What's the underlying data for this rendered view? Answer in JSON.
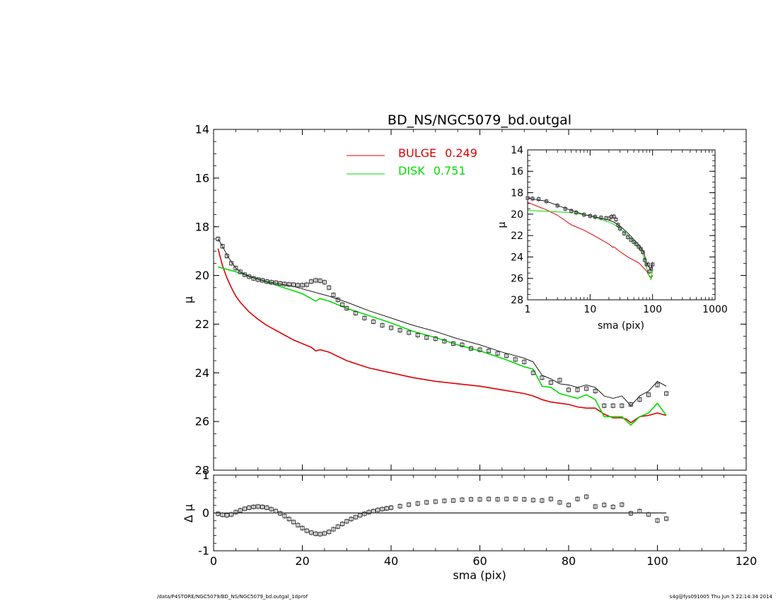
{
  "chart_data": [
    {
      "type": "line",
      "panel": "main",
      "title": "BD_NS/NGC5079_bd.outgal",
      "xlabel": "",
      "ylabel": "μ",
      "xlim": [
        0,
        120
      ],
      "ylim": [
        28,
        14
      ],
      "y_inverted": true,
      "xticks": [
        0,
        20,
        40,
        60,
        80,
        100,
        120
      ],
      "yticks": [
        14,
        16,
        18,
        20,
        22,
        24,
        26,
        28
      ],
      "legend": {
        "placement": "top-center",
        "entries": [
          {
            "label": "BULGE",
            "value": "0.249",
            "color": "#e00000"
          },
          {
            "label": "DISK",
            "value": "0.751",
            "color": "#00dd00"
          }
        ]
      },
      "series": [
        {
          "name": "BULGE",
          "color": "#e00000",
          "x": [
            1,
            2,
            3,
            4,
            5,
            6,
            8,
            10,
            12,
            15,
            18,
            20,
            22,
            23,
            24,
            26,
            30,
            35,
            40,
            45,
            50,
            55,
            60,
            65,
            70,
            72,
            74,
            76,
            78,
            80,
            82,
            84,
            86,
            88,
            90,
            92,
            93,
            94,
            96,
            98,
            100,
            102
          ],
          "y": [
            18.9,
            19.6,
            20.1,
            20.5,
            20.85,
            21.1,
            21.5,
            21.8,
            22.05,
            22.35,
            22.65,
            22.8,
            22.95,
            23.1,
            23.05,
            23.15,
            23.5,
            23.8,
            24.0,
            24.2,
            24.35,
            24.45,
            24.55,
            24.7,
            24.85,
            24.95,
            25.1,
            25.2,
            25.25,
            25.3,
            25.4,
            25.45,
            25.45,
            25.7,
            25.85,
            25.85,
            25.9,
            26.05,
            25.8,
            25.75,
            25.65,
            25.75
          ]
        },
        {
          "name": "DISK",
          "color": "#00dd00",
          "x": [
            1,
            5,
            10,
            15,
            20,
            22,
            23,
            24,
            26,
            30,
            35,
            40,
            45,
            50,
            55,
            60,
            65,
            70,
            72,
            74,
            76,
            78,
            80,
            82,
            84,
            86,
            88,
            90,
            92,
            94,
            96,
            98,
            100,
            102
          ],
          "y": [
            19.65,
            19.85,
            20.15,
            20.45,
            20.75,
            20.95,
            21.05,
            20.95,
            21.05,
            21.35,
            21.65,
            21.95,
            22.3,
            22.55,
            22.85,
            23.1,
            23.4,
            23.75,
            23.85,
            24.55,
            24.6,
            24.85,
            24.95,
            25.05,
            24.9,
            25.1,
            25.8,
            25.8,
            25.8,
            26.15,
            25.8,
            25.65,
            25.25,
            25.75
          ]
        },
        {
          "name": "",
          "color": "#000000",
          "x": [
            1,
            2,
            3,
            4,
            5,
            6,
            8,
            10,
            12,
            15,
            18,
            20,
            22,
            24,
            26,
            30,
            35,
            40,
            45,
            50,
            55,
            60,
            65,
            70,
            72,
            74,
            76,
            78,
            80,
            82,
            84,
            86,
            88,
            90,
            92,
            94,
            96,
            98,
            100,
            102
          ],
          "y": [
            18.5,
            18.8,
            19.15,
            19.45,
            19.7,
            19.85,
            20.05,
            20.15,
            20.25,
            20.35,
            20.45,
            20.55,
            20.65,
            20.75,
            20.85,
            21.1,
            21.45,
            21.75,
            22.05,
            22.3,
            22.6,
            22.85,
            23.15,
            23.4,
            23.55,
            24.1,
            24.25,
            24.45,
            24.5,
            24.6,
            24.5,
            24.6,
            24.95,
            25.05,
            24.95,
            25.35,
            24.95,
            24.75,
            24.35,
            24.55
          ]
        },
        {
          "name": "",
          "type": "scatter",
          "marker": "open-square",
          "color": "#000000",
          "x": [
            1,
            2,
            3,
            4,
            5,
            6,
            7,
            8,
            9,
            10,
            11,
            12,
            13,
            14,
            15,
            16,
            17,
            18,
            19,
            20,
            21,
            22,
            23,
            24,
            25,
            26,
            27,
            28,
            29,
            30,
            32,
            34,
            36,
            38,
            40,
            42,
            44,
            46,
            48,
            50,
            52,
            54,
            56,
            58,
            60,
            62,
            64,
            66,
            68,
            70,
            72,
            74,
            76,
            78,
            80,
            82,
            84,
            86,
            88,
            90,
            92,
            94,
            96,
            98,
            100,
            102
          ],
          "y": [
            18.5,
            18.8,
            19.2,
            19.5,
            19.7,
            19.85,
            19.97,
            20.05,
            20.12,
            20.17,
            20.2,
            20.25,
            20.28,
            20.3,
            20.33,
            20.35,
            20.37,
            20.38,
            20.4,
            20.4,
            20.38,
            20.25,
            20.2,
            20.22,
            20.28,
            20.5,
            20.8,
            21.0,
            21.2,
            21.35,
            21.55,
            21.75,
            21.9,
            22.05,
            22.15,
            22.25,
            22.35,
            22.45,
            22.55,
            22.6,
            22.7,
            22.8,
            22.85,
            23.0,
            23.05,
            23.1,
            23.2,
            23.3,
            23.45,
            23.55,
            24.0,
            24.2,
            24.4,
            24.3,
            24.7,
            24.7,
            24.65,
            24.75,
            25.35,
            25.35,
            25.35,
            25.3,
            25.1,
            24.9,
            24.5,
            24.85
          ]
        }
      ]
    },
    {
      "type": "scatter",
      "panel": "residual",
      "title": "",
      "xlabel": "sma (pix)",
      "ylabel": "Δ μ",
      "xlim": [
        0,
        120
      ],
      "ylim": [
        -1,
        1
      ],
      "xticks": [
        0,
        20,
        40,
        60,
        80,
        100,
        120
      ],
      "yticks": [
        -1,
        0,
        1
      ],
      "reference_line": 0,
      "series": [
        {
          "name": "",
          "marker": "open-square",
          "color": "#000000",
          "x": [
            1,
            2,
            3,
            4,
            5,
            6,
            7,
            8,
            9,
            10,
            11,
            12,
            13,
            14,
            15,
            16,
            17,
            18,
            19,
            20,
            21,
            22,
            23,
            24,
            25,
            26,
            27,
            28,
            29,
            30,
            31,
            32,
            33,
            34,
            35,
            36,
            37,
            38,
            39,
            40,
            42,
            44,
            46,
            48,
            50,
            52,
            54,
            56,
            58,
            60,
            62,
            64,
            66,
            68,
            70,
            72,
            74,
            76,
            78,
            80,
            82,
            84,
            86,
            88,
            90,
            92,
            94,
            96,
            98,
            100,
            102
          ],
          "y": [
            -0.02,
            -0.05,
            -0.06,
            -0.04,
            0.02,
            0.07,
            0.11,
            0.14,
            0.16,
            0.17,
            0.16,
            0.14,
            0.1,
            0.05,
            -0.01,
            -0.08,
            -0.16,
            -0.24,
            -0.32,
            -0.4,
            -0.47,
            -0.52,
            -0.55,
            -0.56,
            -0.54,
            -0.5,
            -0.43,
            -0.36,
            -0.29,
            -0.22,
            -0.16,
            -0.11,
            -0.06,
            -0.02,
            0.02,
            0.05,
            0.08,
            0.1,
            0.12,
            0.14,
            0.18,
            0.22,
            0.25,
            0.28,
            0.3,
            0.32,
            0.33,
            0.35,
            0.36,
            0.36,
            0.37,
            0.36,
            0.37,
            0.37,
            0.36,
            0.34,
            0.33,
            0.37,
            0.28,
            0.21,
            0.37,
            0.43,
            0.17,
            0.21,
            0.16,
            0.22,
            -0.01,
            0.05,
            -0.04,
            -0.2,
            -0.15
          ]
        }
      ]
    },
    {
      "type": "line",
      "panel": "inset",
      "title": "",
      "xlabel": "sma (pix)",
      "ylabel": "μ",
      "xscale": "log",
      "xlim": [
        1,
        1000
      ],
      "ylim": [
        28,
        14
      ],
      "y_inverted": true,
      "xticks": [
        1,
        10,
        100,
        1000
      ],
      "xticklabels": [
        "1",
        "10",
        "100",
        "1000"
      ],
      "yticks": [
        14,
        16,
        18,
        20,
        22,
        24,
        26,
        28
      ],
      "series": [
        {
          "name": "BULGE",
          "color": "#e00000",
          "x": [
            1,
            2,
            3,
            5,
            8,
            12,
            20,
            23,
            24,
            30,
            40,
            60,
            80,
            90,
            95,
            100
          ],
          "y": [
            18.9,
            19.6,
            20.1,
            21.0,
            21.5,
            22.05,
            22.8,
            23.1,
            23.05,
            23.5,
            24.0,
            24.55,
            25.3,
            25.85,
            26.0,
            25.7
          ]
        },
        {
          "name": "DISK",
          "color": "#00dd00",
          "x": [
            1,
            5,
            10,
            20,
            24,
            30,
            40,
            60,
            70,
            80,
            88,
            92,
            94,
            96,
            100
          ],
          "y": [
            19.65,
            19.85,
            20.15,
            20.75,
            20.95,
            21.35,
            21.95,
            23.1,
            23.75,
            24.95,
            25.8,
            25.8,
            26.15,
            25.8,
            25.25
          ]
        },
        {
          "name": "",
          "color": "#000000",
          "x": [
            1,
            2,
            4,
            8,
            12,
            20,
            24,
            30,
            40,
            60,
            72,
            80,
            90,
            95,
            100
          ],
          "y": [
            18.5,
            18.8,
            19.45,
            20.05,
            20.25,
            20.55,
            20.75,
            21.1,
            21.75,
            22.85,
            23.55,
            24.5,
            25.05,
            25.2,
            24.5
          ]
        },
        {
          "name": "",
          "type": "scatter",
          "marker": "open-square",
          "color": "#000000",
          "x": [
            1,
            1.2,
            1.5,
            2,
            3,
            4,
            5,
            6,
            8,
            10,
            12,
            15,
            18,
            20,
            22,
            24,
            26,
            28,
            30,
            35,
            40,
            45,
            50,
            55,
            60,
            65,
            70,
            75,
            80,
            85,
            90,
            95,
            100
          ],
          "y": [
            18.5,
            18.55,
            18.6,
            18.8,
            19.2,
            19.5,
            19.7,
            19.85,
            20.05,
            20.17,
            20.25,
            20.33,
            20.38,
            20.4,
            20.25,
            20.22,
            20.5,
            21.0,
            21.35,
            21.8,
            22.15,
            22.4,
            22.6,
            22.8,
            23.05,
            23.25,
            23.55,
            24.3,
            24.7,
            24.7,
            25.35,
            25.1,
            24.7
          ]
        }
      ]
    }
  ],
  "footer": {
    "left": "/data/P4STORE/NGC5079/BD_NS/NGC5079_bd.outgal_1dprof",
    "right": "s4g@fys091005  Thu Jun  5 22:14:34 2014"
  }
}
